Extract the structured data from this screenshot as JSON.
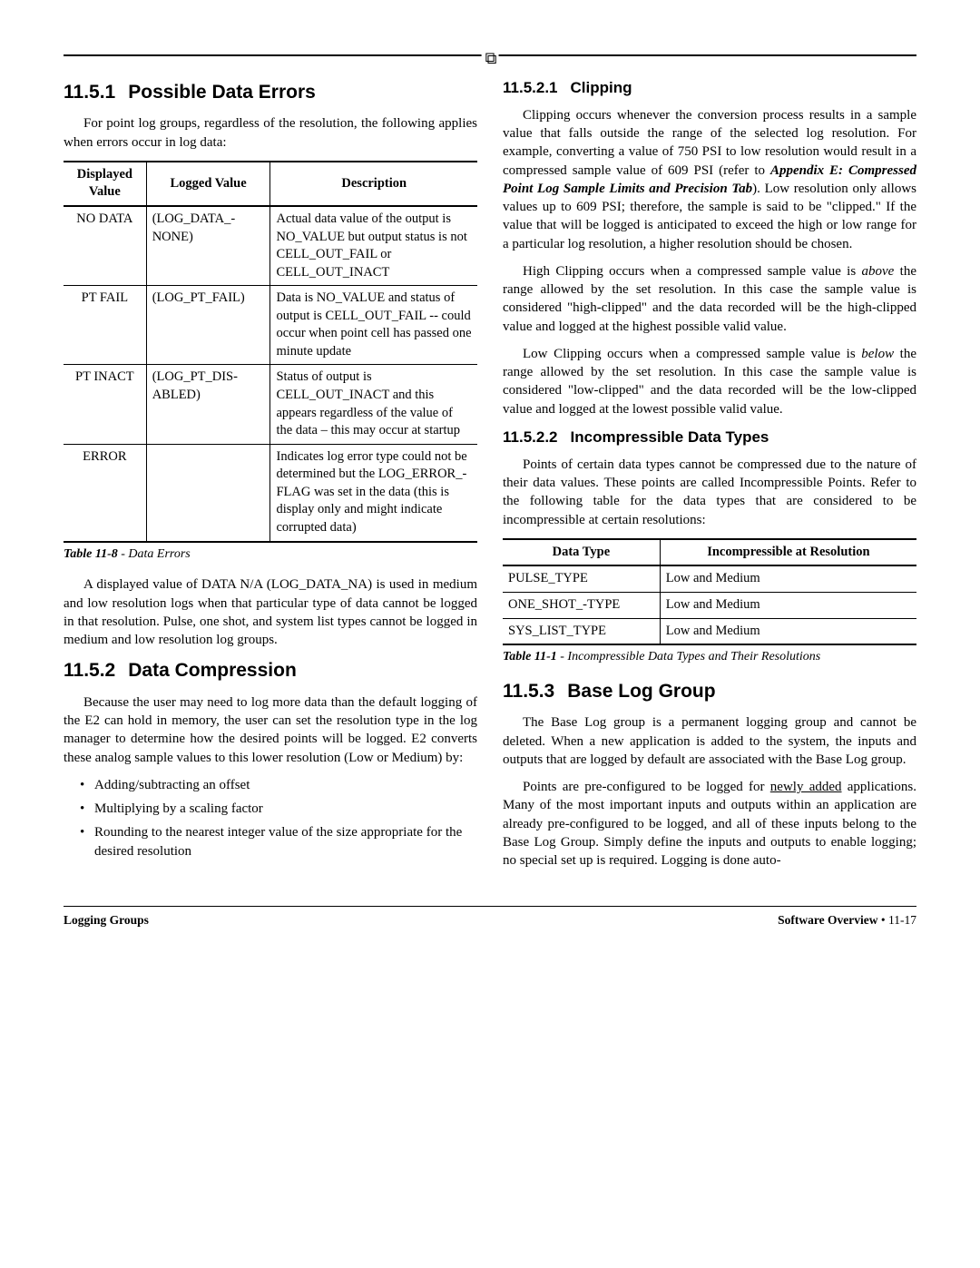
{
  "topIcon": "⧉",
  "left": {
    "sec1": {
      "num": "11.5.1",
      "title": "Possible Data Errors"
    },
    "p1": "For point log groups, regardless of the resolution, the following applies when errors occur in log data:",
    "table": {
      "headers": [
        "Displayed Value",
        "Logged Value",
        "Description"
      ],
      "rows": [
        [
          "NO DATA",
          "(LOG_DATA_-NONE)",
          "Actual data value of the output is NO_VALUE but output status is not CELL_OUT_FAIL or CELL_OUT_INACT"
        ],
        [
          "PT FAIL",
          "(LOG_PT_FAIL)",
          "Data is NO_VALUE and status of output is CELL_OUT_FAIL -- could occur when point cell has passed one minute update"
        ],
        [
          "PT INACT",
          "(LOG_PT_DIS-ABLED)",
          "Status of output is CELL_OUT_INACT and this appears regardless of the value of the data – this may occur at startup"
        ],
        [
          "ERROR",
          "",
          "Indicates log error type could not be determined but the LOG_ERROR_-FLAG was set in the data (this is display only and might indicate corrupted data)"
        ]
      ],
      "captionBold": "Table 11-8",
      "captionItalic": " - Data Errors"
    },
    "p2": "A displayed value of DATA N/A (LOG_DATA_NA) is used in medium and low resolution logs when that particular type of data cannot be logged in that resolution. Pulse, one shot, and system list types cannot be logged in medium and low resolution log groups.",
    "sec2": {
      "num": "11.5.2",
      "title": "Data Compression"
    },
    "p3": "Because the user may need to log more data than the default logging of the E2 can hold in memory, the user can set the resolution type in the log manager to determine how the desired points will be logged. E2 converts these analog sample values to this lower resolution (Low or Medium) by:",
    "bullets": [
      "Adding/subtracting an offset",
      "Multiplying by a scaling factor",
      "Rounding to the nearest integer value of the size appropriate for the desired resolution"
    ]
  },
  "right": {
    "sub1": {
      "num": "11.5.2.1",
      "title": "Clipping"
    },
    "p1a": "Clipping occurs whenever the conversion process results in a sample value that falls outside the range of the selected log resolution. For example, converting a value of 750 PSI to low resolution would result in a compressed sample value of 609 PSI (refer to ",
    "p1b": "Appendix E: Compressed Point Log Sample Limits and Precision Tab",
    "p1c": "). Low resolution only allows values up to 609 PSI; therefore, the sample is said to be \"clipped.\" If the value that will be logged is anticipated to exceed the high or low range for a particular log resolution, a higher resolution should be chosen.",
    "p2a": "High Clipping occurs when a compressed sample value is ",
    "p2b": "above",
    "p2c": " the range allowed by the set resolution. In this case the sample value is considered \"high-clipped\" and the data recorded will be the high-clipped value and logged at the highest possible valid value.",
    "p3a": "Low Clipping occurs when a compressed sample value is ",
    "p3b": "below",
    "p3c": " the range allowed by the set resolution. In this case the sample value is considered \"low-clipped\" and the data recorded will be the low-clipped value and logged at the lowest possible valid value.",
    "sub2": {
      "num": "11.5.2.2",
      "title": "Incompressible Data Types"
    },
    "p4": "Points of certain data types cannot be compressed due to the nature of their data values. These points are called Incompressible Points. Refer to the following table for the data types that are considered to be incompressible at certain resolutions:",
    "table": {
      "headers": [
        "Data Type",
        "Incompressible at Resolution"
      ],
      "rows": [
        [
          "PULSE_TYPE",
          "Low and Medium"
        ],
        [
          "ONE_SHOT_-TYPE",
          "Low and Medium"
        ],
        [
          "SYS_LIST_TYPE",
          "Low and Medium"
        ]
      ],
      "captionBold": "Table 11-1",
      "captionItalic": " - Incompressible Data Types and Their Resolutions"
    },
    "sec3": {
      "num": "11.5.3",
      "title": "Base Log Group"
    },
    "p5": "The Base Log group is a permanent logging group and cannot be deleted. When a new application is added to the system, the inputs and outputs that are logged by default are associated with the Base Log group.",
    "p6a": "Points are pre-configured to be logged for ",
    "p6b": "newly added",
    "p6c": " applications. Many of the most important inputs and outputs within an application are already pre-configured to be logged, and all of these inputs belong to the Base Log Group. Simply define the inputs and outputs to enable logging; no special set up is required. Logging is done auto-"
  },
  "footer": {
    "left": "Logging Groups",
    "rightBold": "Software Overview",
    "rightPlain": " • 11-17"
  }
}
